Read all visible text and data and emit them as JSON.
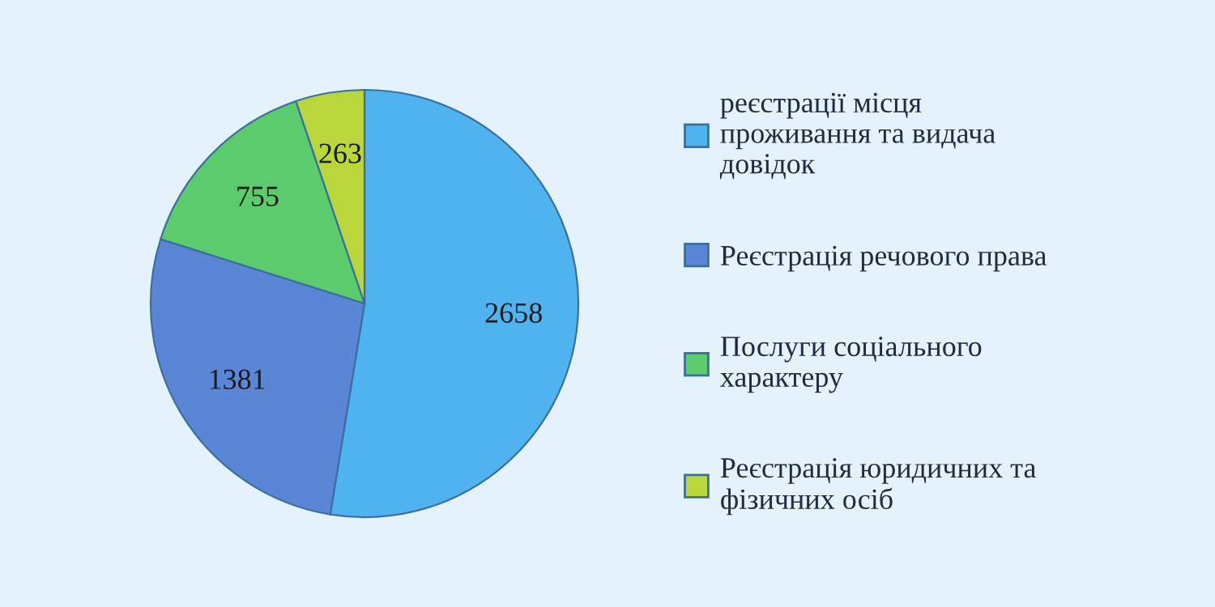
{
  "chart_data": {
    "type": "pie",
    "categories": [
      "реєстрації місця\nпроживання та видача\nдовідок",
      "Реєстрація речового права",
      "Послуги соціального\nхарактеру",
      "Реєстрація юридичних та\nфізичних осіб"
    ],
    "values": [
      2658,
      1381,
      755,
      263
    ],
    "colors": [
      "#4fb3ef",
      "#5b86d6",
      "#5ccb6c",
      "#b9d63a"
    ],
    "data_labels": true,
    "legend": "right"
  }
}
